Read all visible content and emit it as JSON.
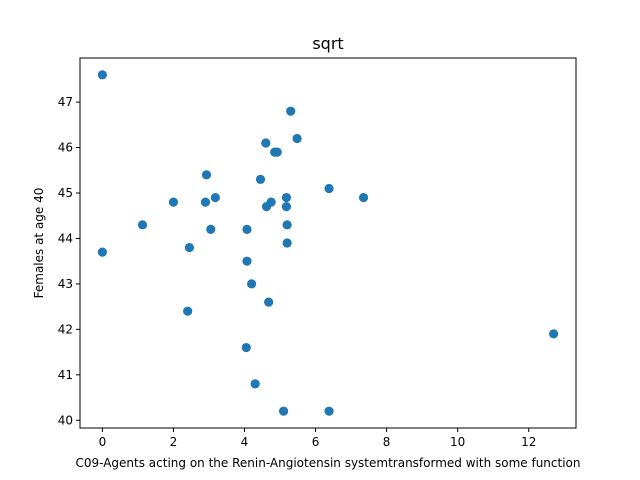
{
  "chart_data": {
    "type": "scatter",
    "title": "sqrt",
    "xlabel": "C09-Agents acting on the Renin-Angiotensin systemtransformed with some function",
    "ylabel": "Females at age 40",
    "xlim": [
      -0.63,
      13.33
    ],
    "ylim": [
      39.83,
      47.97
    ],
    "x_ticks": [
      0,
      2,
      4,
      6,
      8,
      10,
      12
    ],
    "y_ticks": [
      40,
      41,
      42,
      43,
      44,
      45,
      46,
      47
    ],
    "grid": false,
    "marker_color": "#1f77b4",
    "points": [
      {
        "x": 0.0,
        "y": 47.6
      },
      {
        "x": 0.0,
        "y": 43.7
      },
      {
        "x": 1.13,
        "y": 44.3
      },
      {
        "x": 2.0,
        "y": 44.8
      },
      {
        "x": 2.4,
        "y": 42.4
      },
      {
        "x": 2.45,
        "y": 43.8
      },
      {
        "x": 2.9,
        "y": 44.8
      },
      {
        "x": 2.93,
        "y": 45.4
      },
      {
        "x": 3.05,
        "y": 44.2
      },
      {
        "x": 3.18,
        "y": 44.9
      },
      {
        "x": 4.05,
        "y": 41.6
      },
      {
        "x": 4.07,
        "y": 44.2
      },
      {
        "x": 4.07,
        "y": 43.5
      },
      {
        "x": 4.2,
        "y": 43.0
      },
      {
        "x": 4.3,
        "y": 40.8
      },
      {
        "x": 4.45,
        "y": 45.3
      },
      {
        "x": 4.6,
        "y": 46.1
      },
      {
        "x": 4.62,
        "y": 44.7
      },
      {
        "x": 4.68,
        "y": 42.6
      },
      {
        "x": 4.75,
        "y": 44.8
      },
      {
        "x": 4.85,
        "y": 45.9
      },
      {
        "x": 4.92,
        "y": 45.9
      },
      {
        "x": 5.1,
        "y": 40.2
      },
      {
        "x": 5.18,
        "y": 44.9
      },
      {
        "x": 5.18,
        "y": 44.7
      },
      {
        "x": 5.2,
        "y": 44.3
      },
      {
        "x": 5.2,
        "y": 43.9
      },
      {
        "x": 5.3,
        "y": 46.8
      },
      {
        "x": 5.48,
        "y": 46.2
      },
      {
        "x": 6.38,
        "y": 45.1
      },
      {
        "x": 6.38,
        "y": 40.2
      },
      {
        "x": 7.35,
        "y": 44.9
      },
      {
        "x": 12.7,
        "y": 41.9
      }
    ]
  }
}
